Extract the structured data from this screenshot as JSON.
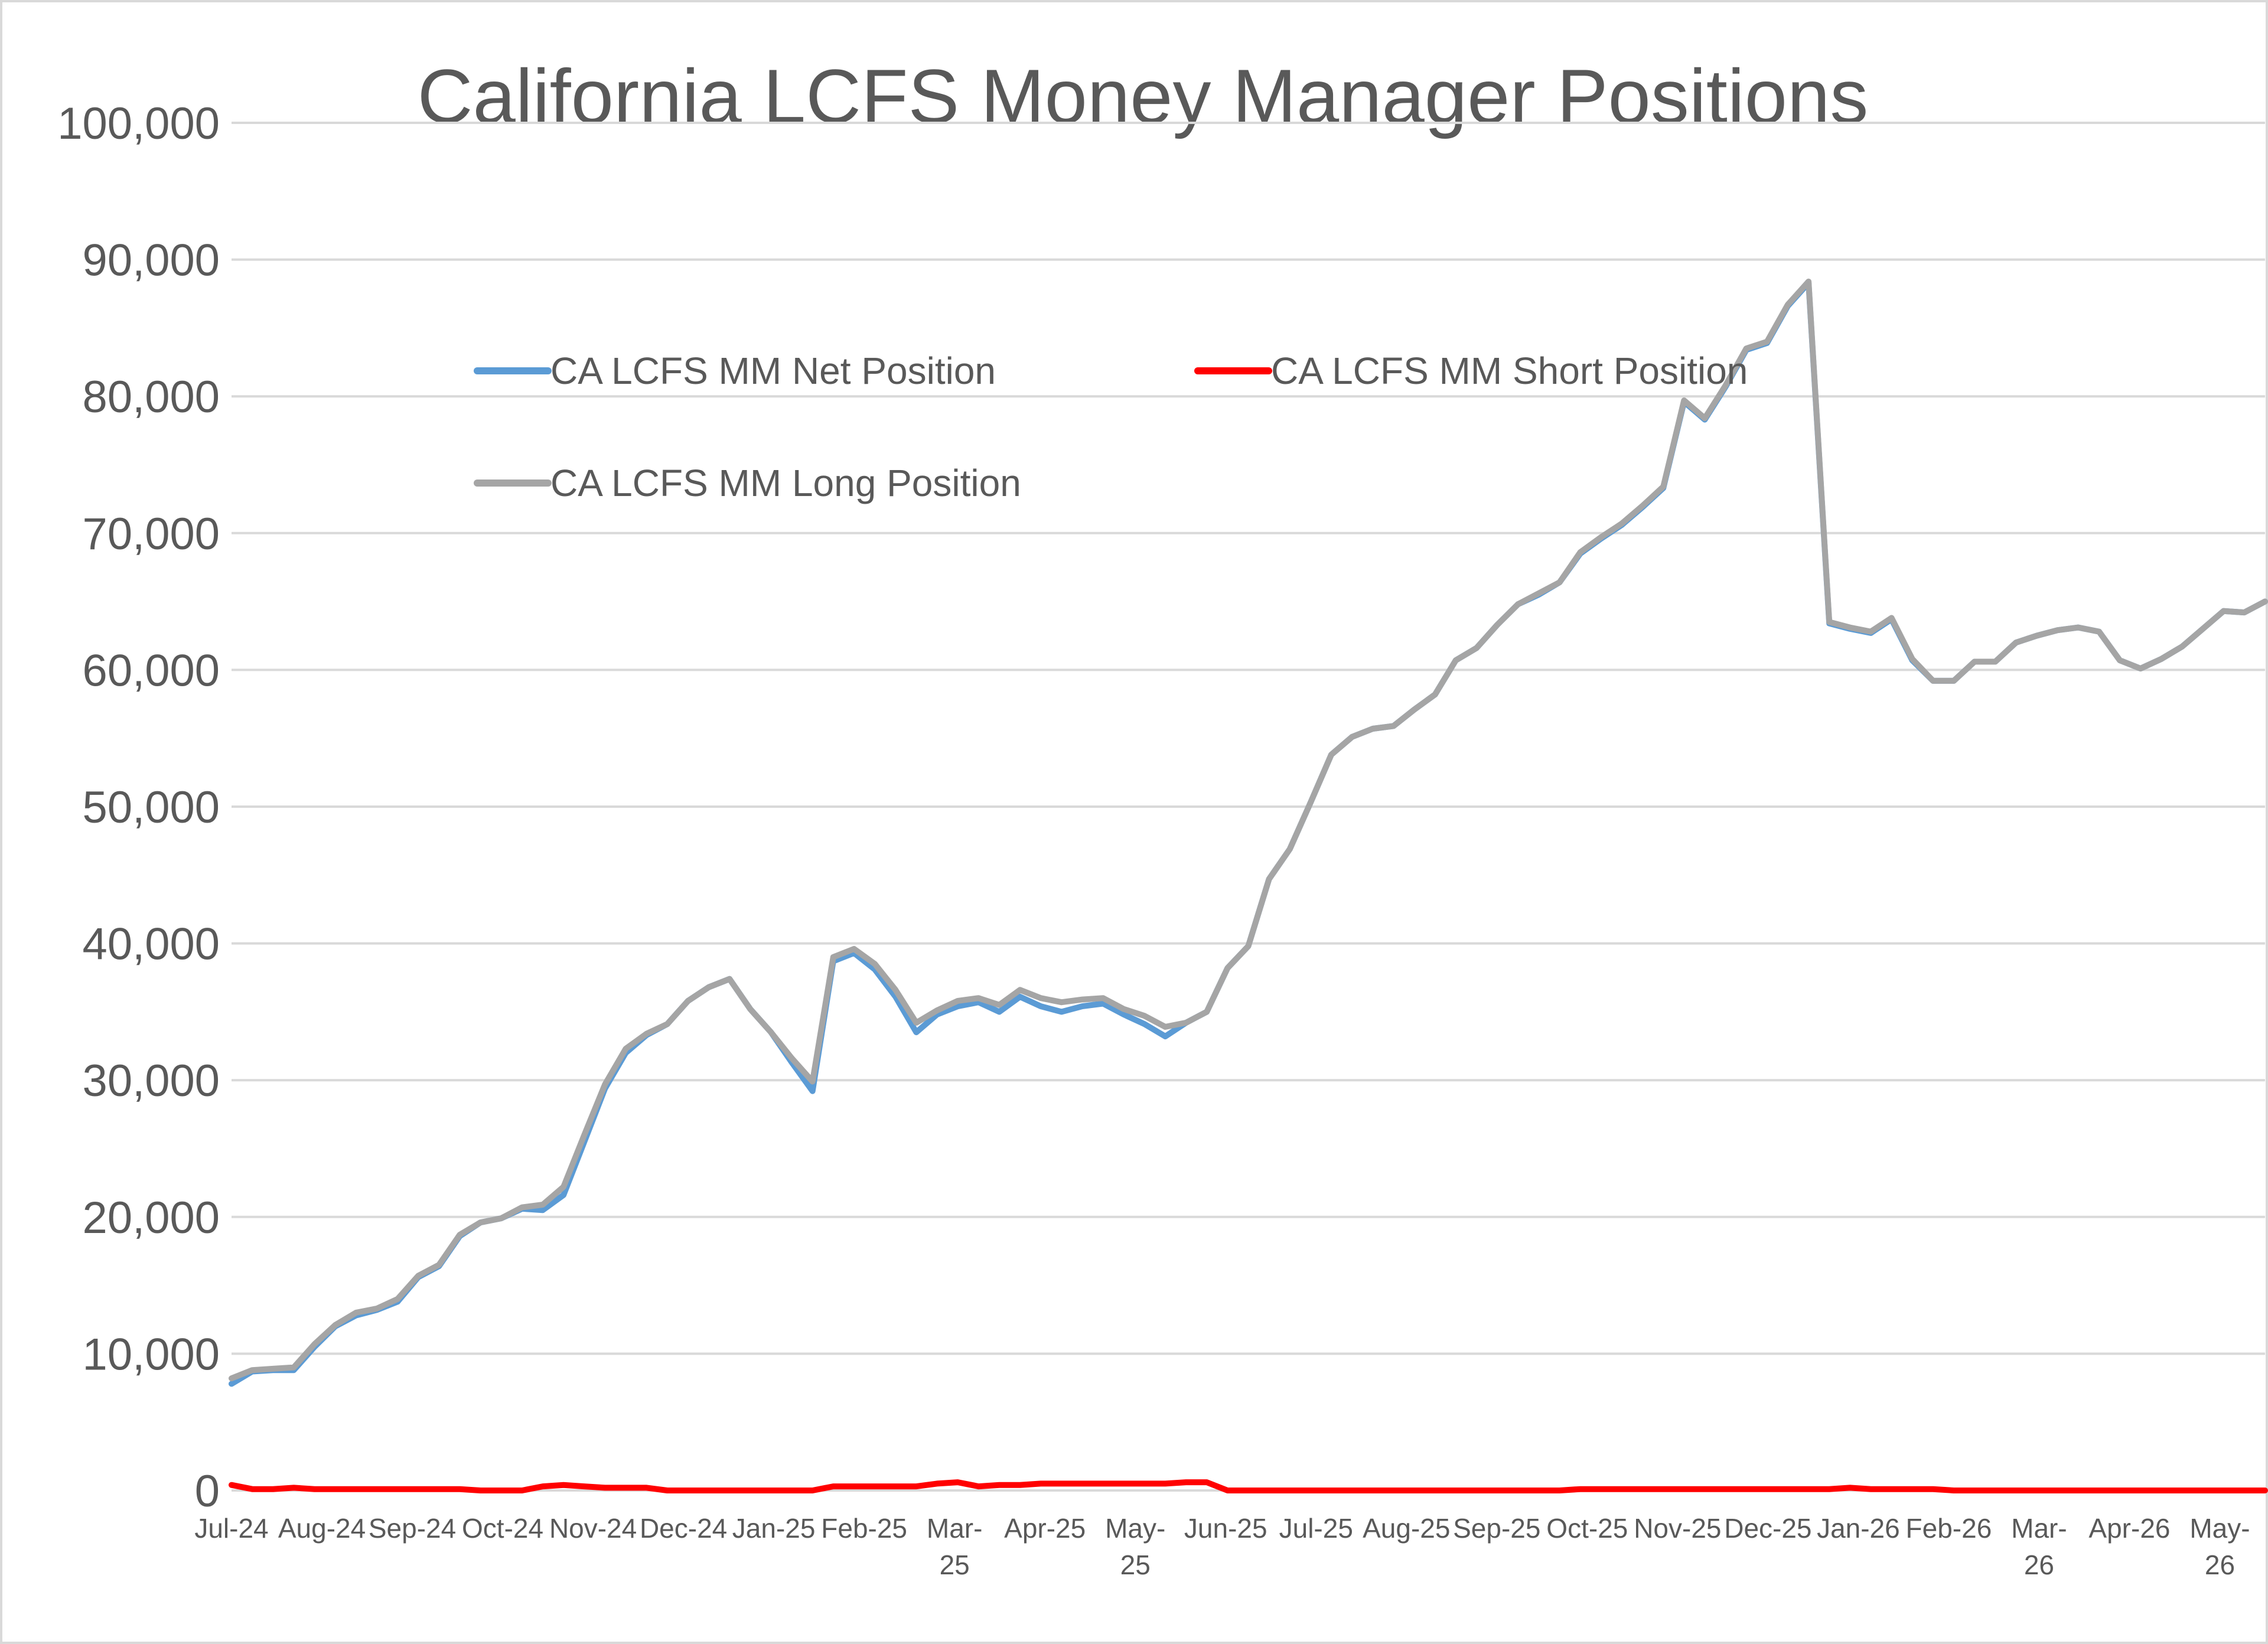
{
  "chart_data": {
    "type": "line",
    "title": "California LCFS Money Manager Positions",
    "xlabel": "",
    "ylabel": "",
    "ylim": [
      0,
      100000
    ],
    "y_ticks": [
      "0",
      "10,000",
      "20,000",
      "30,000",
      "40,000",
      "50,000",
      "60,000",
      "70,000",
      "80,000",
      "90,000",
      "100,000"
    ],
    "x_tick_labels": [
      [
        "Jul-24"
      ],
      [
        "Aug-24"
      ],
      [
        "Sep-24"
      ],
      [
        "Oct-24"
      ],
      [
        "Nov-24"
      ],
      [
        "Dec-24"
      ],
      [
        "Jan-25"
      ],
      [
        "Feb-25"
      ],
      [
        "Mar-",
        "25"
      ],
      [
        "Apr-25"
      ],
      [
        "May-",
        "25"
      ],
      [
        "Jun-25"
      ],
      [
        "Jul-25"
      ],
      [
        "Aug-25"
      ],
      [
        "Sep-25"
      ],
      [
        "Oct-25"
      ],
      [
        "Nov-25"
      ],
      [
        "Dec-25"
      ],
      [
        "Jan-26"
      ],
      [
        "Feb-26"
      ],
      [
        "Mar-",
        "26"
      ],
      [
        "Apr-26"
      ],
      [
        "May-",
        "26"
      ]
    ],
    "grid": true,
    "legend_position": "top-left, inside plot",
    "series": [
      {
        "name": "CA LCFS MM Net Position",
        "color": "#5b9bd5",
        "values": [
          7800,
          8700,
          8800,
          8800,
          10500,
          12000,
          12800,
          13200,
          13800,
          15600,
          16400,
          18600,
          19600,
          19900,
          20600,
          20500,
          21600,
          25500,
          29400,
          32000,
          33300,
          34100,
          35800,
          36800,
          37400,
          35200,
          33500,
          31300,
          29200,
          38700,
          39300,
          38100,
          36100,
          33500,
          34800,
          35400,
          35700,
          35000,
          36100,
          35400,
          35000,
          35400,
          35600,
          34800,
          34100,
          33200,
          34200,
          35000,
          38200,
          39800,
          44700,
          46900,
          50300,
          53800,
          55100,
          55700,
          55900,
          57100,
          58200,
          60700,
          61600,
          63300,
          64800,
          65500,
          66400,
          68500,
          69600,
          70600,
          71900,
          73300,
          79600,
          78300,
          80700,
          83400,
          83900,
          86600,
          88300,
          63400,
          63000,
          62700,
          63700,
          60700,
          59200,
          59200,
          60600,
          60600,
          62000,
          62500,
          62900,
          63100,
          62800,
          60700,
          60100,
          60800,
          61700,
          63000,
          64300,
          64200,
          65000
        ]
      },
      {
        "name": "CA LCFS MM Short Position",
        "color": "#ff0000",
        "values": [
          400,
          100,
          100,
          200,
          100,
          100,
          100,
          100,
          100,
          100,
          100,
          100,
          0,
          0,
          0,
          300,
          400,
          300,
          200,
          200,
          200,
          0,
          0,
          0,
          0,
          0,
          0,
          0,
          0,
          300,
          300,
          300,
          300,
          300,
          500,
          600,
          300,
          400,
          400,
          500,
          500,
          500,
          500,
          500,
          500,
          500,
          600,
          600,
          0,
          0,
          0,
          0,
          0,
          0,
          0,
          0,
          0,
          0,
          0,
          0,
          0,
          0,
          0,
          0,
          0,
          100,
          100,
          100,
          100,
          100,
          100,
          100,
          100,
          100,
          100,
          100,
          100,
          100,
          200,
          100,
          100,
          100,
          100,
          0,
          0,
          0,
          0,
          0,
          0,
          0,
          0,
          0,
          0,
          0,
          0,
          0,
          0,
          0,
          0
        ]
      },
      {
        "name": "CA LCFS MM Long Position",
        "color": "#a5a5a5",
        "values": [
          8200,
          8800,
          8900,
          9000,
          10700,
          12100,
          13000,
          13300,
          14000,
          15700,
          16500,
          18700,
          19600,
          19900,
          20700,
          20900,
          22200,
          26000,
          29700,
          32300,
          33400,
          34100,
          35800,
          36800,
          37400,
          35200,
          33500,
          31600,
          29900,
          39000,
          39600,
          38500,
          36600,
          34200,
          35100,
          35800,
          36000,
          35500,
          36600,
          36000,
          35700,
          35900,
          36000,
          35200,
          34700,
          33900,
          34200,
          35000,
          38200,
          39800,
          44700,
          46900,
          50300,
          53800,
          55100,
          55700,
          55900,
          57100,
          58200,
          60700,
          61600,
          63300,
          64800,
          65600,
          66400,
          68600,
          69700,
          70700,
          72000,
          73400,
          79700,
          78400,
          80800,
          83500,
          84000,
          86700,
          88400,
          63500,
          63100,
          62800,
          63800,
          60800,
          59200,
          59200,
          60600,
          60600,
          62000,
          62500,
          62900,
          63100,
          62800,
          60700,
          60100,
          60800,
          61700,
          63000,
          64300,
          64200,
          65000
        ]
      }
    ]
  }
}
